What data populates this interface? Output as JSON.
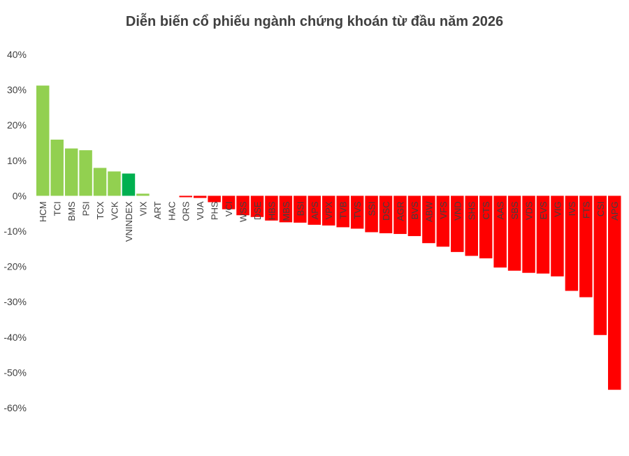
{
  "chart_data": {
    "type": "bar",
    "title": "Diễn biến cổ phiếu ngành chứng khoán từ đầu năm 2026",
    "xlabel": "",
    "ylabel": "",
    "ylim": [
      -60,
      40
    ],
    "yticks": [
      40,
      30,
      20,
      10,
      0,
      -10,
      -20,
      -30,
      -40,
      -50,
      -60
    ],
    "ytick_labels": [
      "40%",
      "30%",
      "20%",
      "10%",
      "0%",
      "-10%",
      "-20%",
      "-30%",
      "-40%",
      "-50%",
      "-60%"
    ],
    "grid": false,
    "legend": "none",
    "categories": [
      "HCM",
      "TCI",
      "BMS",
      "PSI",
      "TCX",
      "VCK",
      "VNINDEX",
      "VIX",
      "ART",
      "HAC",
      "ORS",
      "VUA",
      "PHS",
      "VCI",
      "WSS",
      "DSE",
      "HBS",
      "MBS",
      "BSI",
      "APS",
      "VPX",
      "TVB",
      "TVS",
      "SSI",
      "DSC",
      "AGR",
      "BVS",
      "ABW",
      "VFS",
      "VND",
      "SHS",
      "CTS",
      "AAS",
      "SBS",
      "VDS",
      "EVS",
      "VIG",
      "IVS",
      "FTS",
      "CSI",
      "APG"
    ],
    "values": [
      31.2,
      15.9,
      13.4,
      12.9,
      7.9,
      6.9,
      6.3,
      0.6,
      0.0,
      0.0,
      -0.4,
      -0.6,
      -1.8,
      -3.8,
      -5.5,
      -6.0,
      -7.0,
      -7.5,
      -7.6,
      -8.2,
      -8.4,
      -8.9,
      -9.3,
      -10.3,
      -10.6,
      -10.8,
      -11.4,
      -13.4,
      -14.4,
      -15.9,
      -17.0,
      -17.7,
      -20.3,
      -21.2,
      -21.8,
      -22.0,
      -22.8,
      -26.9,
      -28.7,
      -39.4,
      -54.9
    ],
    "colors": {
      "positive": "#92d050",
      "index": "#00b050",
      "negative": "#ff0000",
      "axis_text": "#404040"
    },
    "highlight_category": "VNINDEX"
  }
}
